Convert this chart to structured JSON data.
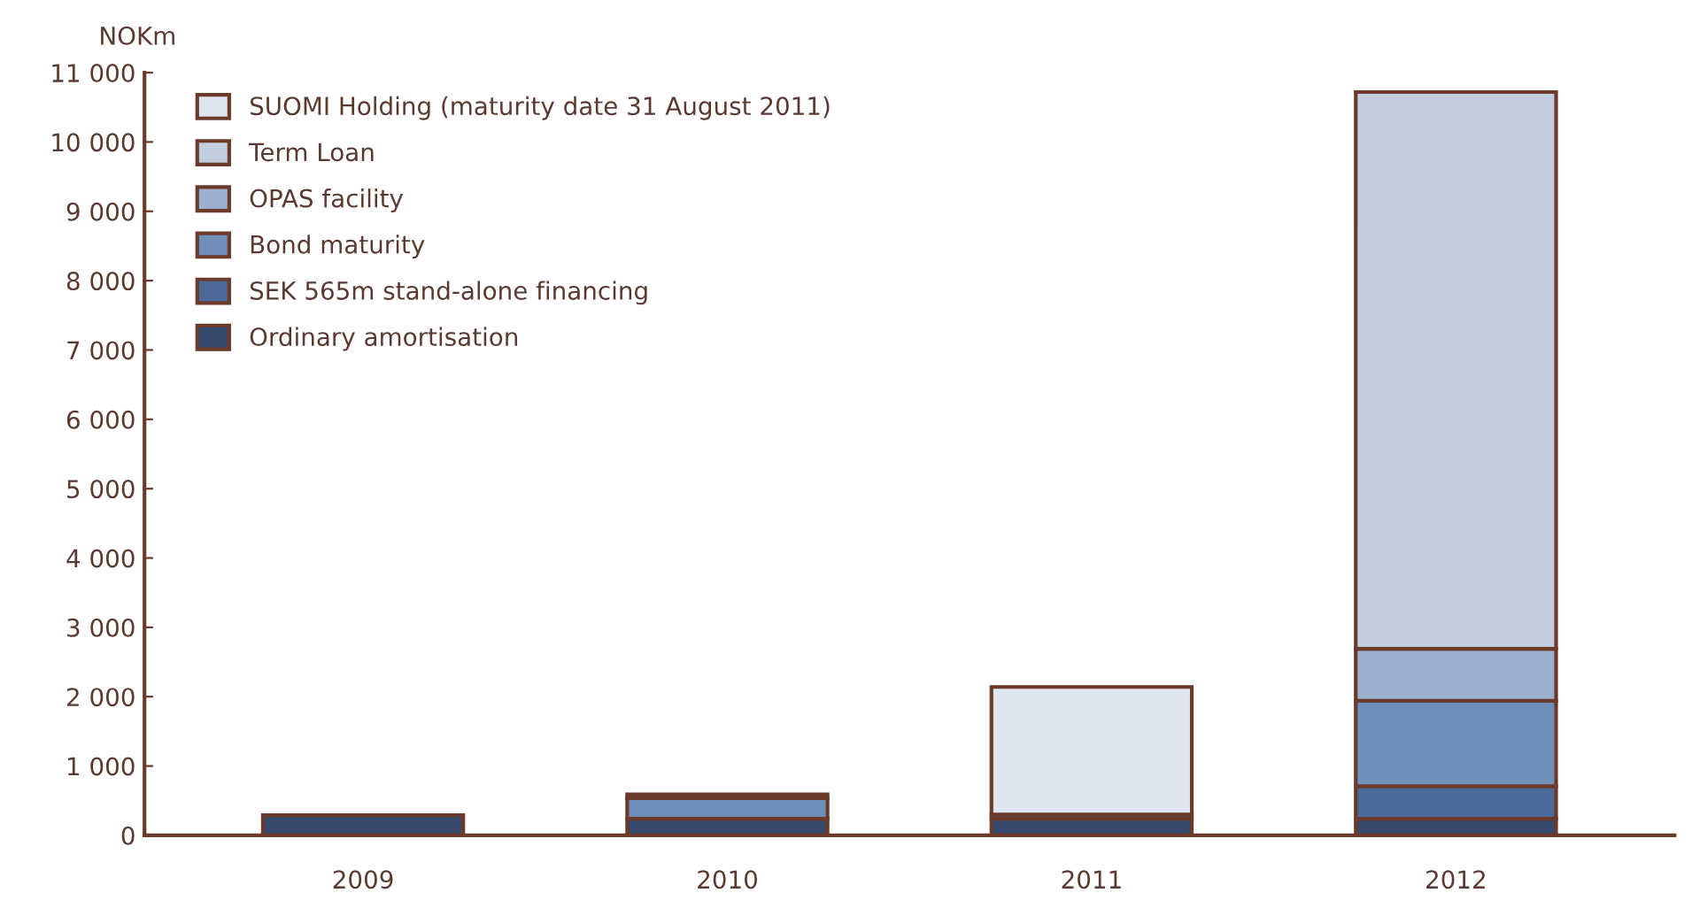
{
  "chart_data": {
    "type": "bar",
    "stacked": true,
    "ylabel": "NOKm",
    "categories": [
      "2009",
      "2010",
      "2011",
      "2012"
    ],
    "series": [
      {
        "name": "Ordinary amortisation",
        "color": "#364b6d",
        "values": [
          290,
          240,
          240,
          240
        ]
      },
      {
        "name": "SEK 565m stand-alone financing",
        "color": "#4a6a9a",
        "values": [
          null,
          null,
          60,
          470
        ]
      },
      {
        "name": "Bond maturity",
        "color": "#6f8eb9",
        "values": [
          null,
          300,
          null,
          1230
        ]
      },
      {
        "name": "OPAS facility",
        "color": "#9eb0cf",
        "values": [
          null,
          50,
          null,
          750
        ]
      },
      {
        "name": "Term Loan",
        "color": "#c3cde0",
        "values": [
          null,
          null,
          null,
          8030
        ]
      },
      {
        "name": "SUOMI Holding (maturity date 31 August 2011)",
        "color": "#dfe5ef",
        "values": [
          null,
          null,
          1840,
          null
        ]
      }
    ],
    "ylim": [
      0,
      11000
    ],
    "yticks": [
      0,
      {
        "value": 1000,
        "label": "1 000"
      },
      {
        "value": 2000,
        "label": "2 000"
      },
      {
        "value": 3000,
        "label": "3 000"
      },
      {
        "value": 4000,
        "label": "4 000"
      },
      {
        "value": 5000,
        "label": "5 000"
      },
      {
        "value": 6000,
        "label": "6 000"
      },
      {
        "value": 7000,
        "label": "7 000"
      },
      {
        "value": 8000,
        "label": "8 000"
      },
      {
        "value": 9000,
        "label": "9 000"
      },
      {
        "value": 10000,
        "label": "10 000"
      },
      {
        "value": 11000,
        "label": "11 000"
      }
    ],
    "grid": false,
    "legend": "top left"
  }
}
